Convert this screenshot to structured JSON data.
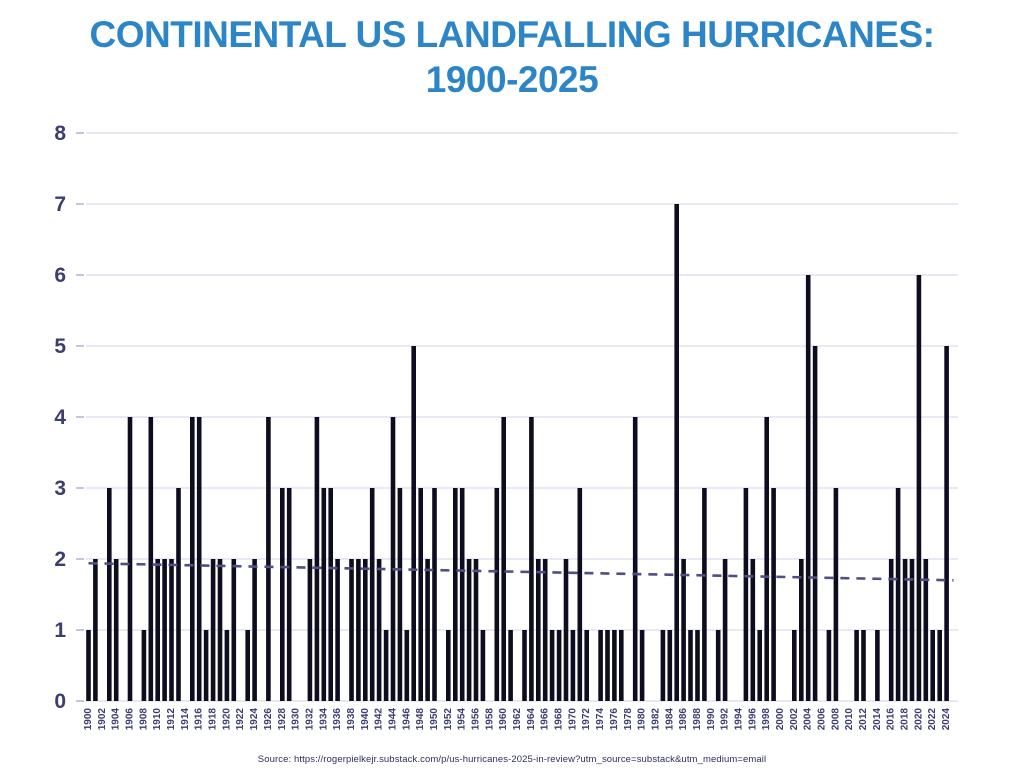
{
  "slide": {
    "title_line1": "CONTINENTAL US LANDFALLING HURRICANES:",
    "title_line2": "1900-2025",
    "source": "Source: https://rogerpielkejr.substack.com/p/us-hurricanes-2025-in-review?utm_source=substack&utm_medium=email"
  },
  "colors": {
    "background": "#ffffff",
    "title": "#2b85c6",
    "bar": "#0d0d1f",
    "axis_text": "#3d3d70",
    "gridline": "#dcdcef",
    "tick": "#b4b8d8",
    "trend": "#4f4f85",
    "source_text": "#2e2e5e"
  },
  "chart_data": {
    "type": "bar",
    "title": "CONTINENTAL US LANDFALLING HURRICANES: 1900-2025",
    "xlabel": "",
    "ylabel": "",
    "ylim": [
      0,
      8
    ],
    "yticks": [
      0,
      1,
      2,
      3,
      4,
      5,
      6,
      7,
      8
    ],
    "xtick_interval": 2,
    "grid": "horizontal",
    "legend": "none",
    "categories": [
      1900,
      1901,
      1902,
      1903,
      1904,
      1905,
      1906,
      1907,
      1908,
      1909,
      1910,
      1911,
      1912,
      1913,
      1914,
      1915,
      1916,
      1917,
      1918,
      1919,
      1920,
      1921,
      1922,
      1923,
      1924,
      1925,
      1926,
      1927,
      1928,
      1929,
      1930,
      1931,
      1932,
      1933,
      1934,
      1935,
      1936,
      1937,
      1938,
      1939,
      1940,
      1941,
      1942,
      1943,
      1944,
      1945,
      1946,
      1947,
      1948,
      1949,
      1950,
      1951,
      1952,
      1953,
      1954,
      1955,
      1956,
      1957,
      1958,
      1959,
      1960,
      1961,
      1962,
      1963,
      1964,
      1965,
      1966,
      1967,
      1968,
      1969,
      1970,
      1971,
      1972,
      1973,
      1974,
      1975,
      1976,
      1977,
      1978,
      1979,
      1980,
      1981,
      1982,
      1983,
      1984,
      1985,
      1986,
      1987,
      1988,
      1989,
      1990,
      1991,
      1992,
      1993,
      1994,
      1995,
      1996,
      1997,
      1998,
      1999,
      2000,
      2001,
      2002,
      2003,
      2004,
      2005,
      2006,
      2007,
      2008,
      2009,
      2010,
      2011,
      2012,
      2013,
      2014,
      2015,
      2016,
      2017,
      2018,
      2019,
      2020,
      2021,
      2022,
      2023,
      2024,
      2025
    ],
    "values": [
      1,
      2,
      0,
      3,
      2,
      0,
      4,
      0,
      1,
      4,
      2,
      2,
      2,
      3,
      0,
      4,
      4,
      1,
      2,
      2,
      1,
      2,
      0,
      1,
      2,
      0,
      4,
      0,
      3,
      3,
      0,
      0,
      2,
      4,
      3,
      3,
      2,
      0,
      2,
      2,
      2,
      3,
      2,
      1,
      4,
      3,
      1,
      5,
      3,
      2,
      3,
      0,
      1,
      3,
      3,
      2,
      2,
      1,
      0,
      3,
      4,
      1,
      0,
      1,
      4,
      2,
      2,
      1,
      1,
      2,
      1,
      3,
      1,
      0,
      1,
      1,
      1,
      1,
      0,
      4,
      1,
      0,
      0,
      1,
      1,
      7,
      2,
      1,
      1,
      3,
      0,
      1,
      2,
      0,
      0,
      3,
      2,
      1,
      4,
      3,
      0,
      0,
      1,
      2,
      6,
      5,
      0,
      1,
      3,
      0,
      0,
      1,
      1,
      0,
      1,
      0,
      2,
      3,
      2,
      2,
      6,
      2,
      1,
      1,
      5,
      0
    ],
    "trend_line": {
      "style": "dashed",
      "start": {
        "x": 1900,
        "y": 1.94
      },
      "end": {
        "x": 2025,
        "y": 1.7
      }
    }
  }
}
